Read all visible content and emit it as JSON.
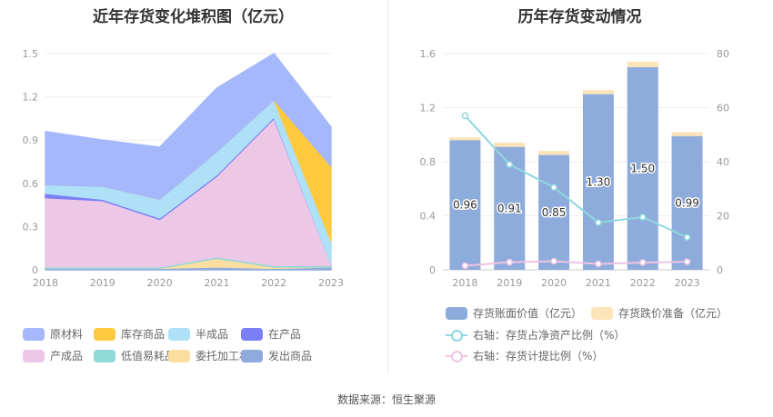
{
  "source_text": "数据来源：恒生聚源",
  "chart_data": [
    {
      "type": "area",
      "title": "近年存货变化堆积图（亿元）",
      "stacked": true,
      "categories": [
        "2018",
        "2019",
        "2020",
        "2021",
        "2022",
        "2023"
      ],
      "ylim": [
        0,
        1.5
      ],
      "yticks": [
        "0",
        "0.3",
        "0.6",
        "0.9",
        "1.2",
        "1.5"
      ],
      "legend_position": "bottom",
      "series": [
        {
          "name": "发出商品",
          "color": "#8faadc",
          "values": [
            0.01,
            0.01,
            0.01,
            0.02,
            0.01,
            0.02
          ]
        },
        {
          "name": "委托加工材料",
          "color": "#fcdea0",
          "values": [
            0.0,
            0.0,
            0.0,
            0.06,
            0.01,
            0.0
          ]
        },
        {
          "name": "低值易耗品",
          "color": "#8ed8d8",
          "values": [
            0.01,
            0.01,
            0.01,
            0.01,
            0.01,
            0.01
          ]
        },
        {
          "name": "产成品",
          "color": "#ecc8e6",
          "values": [
            0.48,
            0.46,
            0.33,
            0.56,
            1.02,
            0.01
          ]
        },
        {
          "name": "在产品",
          "color": "#7b7ff5",
          "values": [
            0.03,
            0.01,
            0.01,
            0.01,
            0.01,
            0.0
          ]
        },
        {
          "name": "半成品",
          "color": "#aee0f8",
          "values": [
            0.06,
            0.09,
            0.13,
            0.16,
            0.12,
            0.16
          ]
        },
        {
          "name": "库存商品",
          "color": "#fdc93f",
          "values": [
            0.0,
            0.0,
            0.0,
            0.0,
            0.0,
            0.52
          ]
        },
        {
          "name": "原材料",
          "color": "#a4b8fb",
          "values": [
            0.37,
            0.32,
            0.36,
            0.44,
            0.32,
            0.27
          ]
        }
      ]
    },
    {
      "type": "bar",
      "title": "历年存货变动情况",
      "stacked": true,
      "categories": [
        "2018",
        "2019",
        "2020",
        "2021",
        "2022",
        "2023"
      ],
      "ylim": [
        0,
        1.6
      ],
      "yticks": [
        "0",
        "0.4",
        "0.8",
        "1.2",
        "1.6"
      ],
      "y2lim": [
        0,
        80
      ],
      "y2ticks": [
        "0",
        "20",
        "40",
        "60",
        "80"
      ],
      "legend_position": "bottom",
      "series": [
        {
          "name": "存货账面价值（亿元）",
          "color": "#8eacdb",
          "axis": "left",
          "values": [
            0.96,
            0.91,
            0.85,
            1.3,
            1.5,
            0.99
          ],
          "labels": [
            "0.96",
            "0.91",
            "0.85",
            "1.30",
            "1.50",
            "0.99"
          ]
        },
        {
          "name": "存货跌价准备（亿元）",
          "color": "#fde3b8",
          "axis": "left",
          "values": [
            0.02,
            0.03,
            0.03,
            0.03,
            0.04,
            0.03
          ]
        }
      ],
      "lines": [
        {
          "name": "右轴：存货占净资产比例（%）",
          "color": "#8fd7de",
          "axis": "right",
          "values": [
            57,
            39,
            30.5,
            17.5,
            19.5,
            12
          ]
        },
        {
          "name": "右轴：存货计提比例（%）",
          "color": "#efc3e4",
          "axis": "right",
          "values": [
            1.5,
            2.8,
            3.2,
            2.2,
            2.7,
            3.0
          ]
        }
      ]
    }
  ]
}
